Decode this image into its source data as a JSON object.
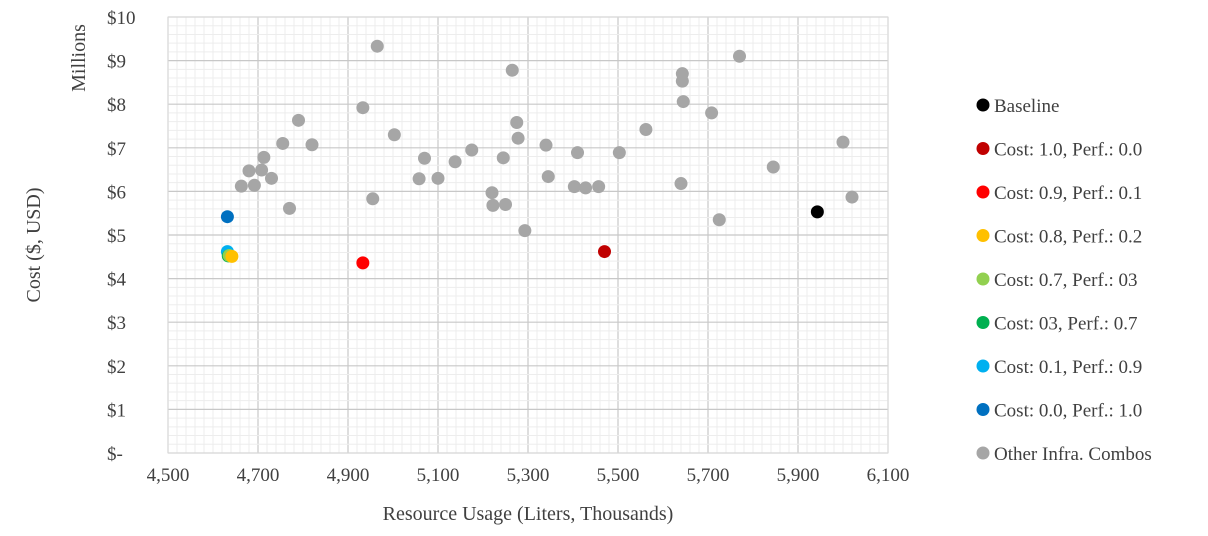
{
  "chart_data": {
    "type": "scatter",
    "title": "",
    "xlabel": "Resource Usage (Liters, Thousands)",
    "ylabel": "Cost ($, USD)",
    "ylabel_units": "Millions",
    "xlim": [
      4500,
      6100
    ],
    "ylim": [
      0,
      10
    ],
    "x_ticks": [
      4500,
      4700,
      4900,
      5100,
      5300,
      5500,
      5700,
      5900,
      6100
    ],
    "x_tick_labels": [
      "4,500",
      "4,700",
      "4,900",
      "5,100",
      "5,300",
      "5,500",
      "5,700",
      "5,900",
      "6,100"
    ],
    "y_ticks": [
      0,
      1,
      2,
      3,
      4,
      5,
      6,
      7,
      8,
      9,
      10
    ],
    "y_tick_labels": [
      "$-",
      "$1",
      "$2",
      "$3",
      "$4",
      "$5",
      "$6",
      "$7",
      "$8",
      "$9",
      "$10"
    ],
    "grid": true,
    "legend_position": "right",
    "series": [
      {
        "name": "Baseline",
        "color": "#000000",
        "points": [
          [
            5943,
            5.53
          ]
        ]
      },
      {
        "name": "Cost: 1.0, Perf.: 0.0",
        "color": "#C00000",
        "points": [
          [
            5470,
            4.62
          ]
        ]
      },
      {
        "name": "Cost: 0.9, Perf.: 0.1",
        "color": "#FF0000",
        "points": [
          [
            4933,
            4.36
          ]
        ]
      },
      {
        "name": "Cost: 0.8, Perf.: 0.2",
        "color": "#FFC000",
        "points": [
          [
            4642,
            4.51
          ]
        ]
      },
      {
        "name": "Cost: 0.7, Perf.: 03",
        "color": "#92D050",
        "points": [
          [
            4636,
            4.53
          ]
        ]
      },
      {
        "name": "Cost: 03, Perf.: 0.7",
        "color": "#00B050",
        "points": [
          [
            4634,
            4.52
          ]
        ]
      },
      {
        "name": "Cost: 0.1, Perf.: 0.9",
        "color": "#00B0F0",
        "points": [
          [
            4632,
            4.62
          ]
        ]
      },
      {
        "name": "Cost: 0.0, Perf.: 1.0",
        "color": "#0070C0",
        "points": [
          [
            4632,
            5.42
          ]
        ]
      },
      {
        "name": "Other Infra. Combos",
        "color": "#A6A6A6",
        "points": [
          [
            4965,
            9.33
          ],
          [
            5770,
            9.1
          ],
          [
            5265,
            8.78
          ],
          [
            5643,
            8.7
          ],
          [
            5643,
            8.53
          ],
          [
            5645,
            8.06
          ],
          [
            4933,
            7.92
          ],
          [
            5708,
            7.8
          ],
          [
            4790,
            7.63
          ],
          [
            5275,
            7.58
          ],
          [
            5562,
            7.42
          ],
          [
            5003,
            7.3
          ],
          [
            5278,
            7.22
          ],
          [
            4755,
            7.1
          ],
          [
            4820,
            7.07
          ],
          [
            6000,
            7.13
          ],
          [
            5340,
            7.06
          ],
          [
            5175,
            6.95
          ],
          [
            5410,
            6.89
          ],
          [
            5503,
            6.89
          ],
          [
            4713,
            6.78
          ],
          [
            5070,
            6.76
          ],
          [
            5245,
            6.77
          ],
          [
            5138,
            6.68
          ],
          [
            5845,
            6.56
          ],
          [
            4708,
            6.49
          ],
          [
            4680,
            6.47
          ],
          [
            5345,
            6.34
          ],
          [
            5058,
            6.29
          ],
          [
            5100,
            6.3
          ],
          [
            4730,
            6.3
          ],
          [
            4692,
            6.14
          ],
          [
            4663,
            6.12
          ],
          [
            5403,
            6.11
          ],
          [
            5428,
            6.08
          ],
          [
            5457,
            6.11
          ],
          [
            5640,
            6.18
          ],
          [
            5220,
            5.97
          ],
          [
            6020,
            5.87
          ],
          [
            4955,
            5.83
          ],
          [
            5222,
            5.68
          ],
          [
            5250,
            5.7
          ],
          [
            4770,
            5.61
          ],
          [
            5725,
            5.35
          ],
          [
            5293,
            5.1
          ]
        ]
      }
    ]
  }
}
